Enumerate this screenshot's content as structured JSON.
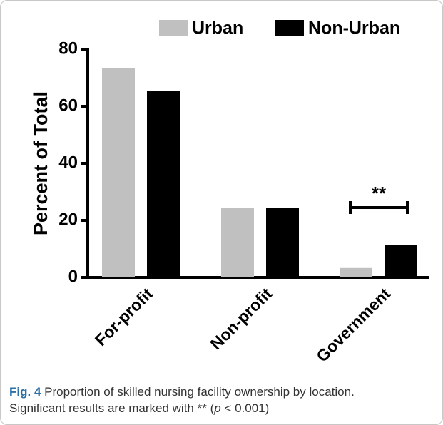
{
  "chart_data": {
    "type": "bar",
    "categories": [
      "For-profit",
      "Non-profit",
      "Government"
    ],
    "series": [
      {
        "name": "Urban",
        "color": "#c0c0c0",
        "values": [
          73.5,
          24.3,
          3.3
        ]
      },
      {
        "name": "Non-Urban",
        "color": "#000000",
        "values": [
          65.3,
          24.3,
          11.3
        ]
      }
    ],
    "ylabel": "Percent of Total",
    "ylim": [
      0,
      80
    ],
    "yticks": [
      0,
      20,
      40,
      60,
      80
    ],
    "annotation": "**",
    "legend": "top"
  },
  "caption": {
    "label": "Fig. 4",
    "text": "Proportion of skilled nursing facility ownership by location.",
    "line2_start": "Significant results are marked with ** (",
    "line2_italic": "p",
    "line2_end": " < 0.001)"
  }
}
